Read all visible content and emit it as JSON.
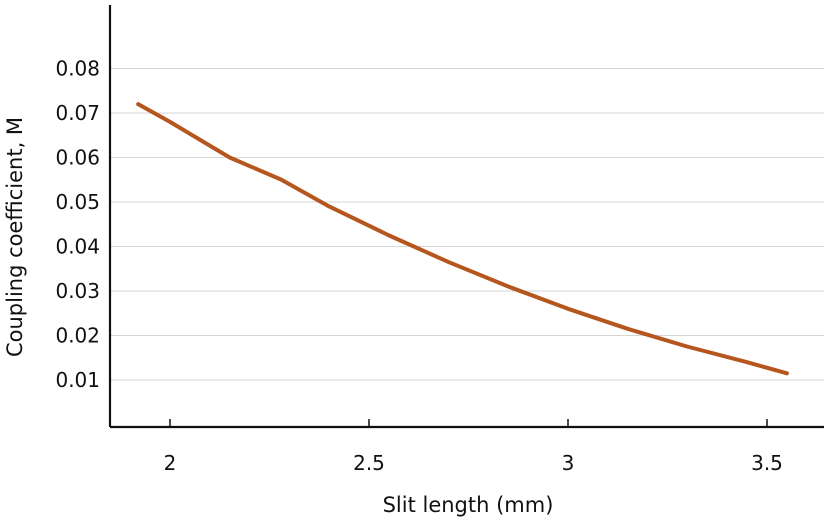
{
  "chart_data": {
    "type": "line",
    "title": "",
    "xlabel": "Slit length (mm)",
    "ylabel": "Coupling coefficient, M",
    "xlim": [
      1.85,
      3.62
    ],
    "ylim": [
      0.0,
      0.085
    ],
    "xticks": [
      2,
      2.5,
      3,
      3.5
    ],
    "xtick_labels": [
      "2",
      "2.5",
      "3",
      "3.5"
    ],
    "yticks": [
      0.01,
      0.02,
      0.03,
      0.04,
      0.05,
      0.06,
      0.07,
      0.08
    ],
    "ytick_labels": [
      "0.01",
      "0.02",
      "0.03",
      "0.04",
      "0.05",
      "0.06",
      "0.07",
      "0.08"
    ],
    "grid": "horizontal",
    "legend": "none",
    "series": [
      {
        "color": "#b5561f",
        "x": [
          1.92,
          2.0,
          2.15,
          2.28,
          2.4,
          2.55,
          2.7,
          2.85,
          3.0,
          3.15,
          3.3,
          3.45,
          3.55
        ],
        "y": [
          0.072,
          0.068,
          0.06,
          0.055,
          0.049,
          0.0425,
          0.0365,
          0.031,
          0.026,
          0.0215,
          0.0175,
          0.014,
          0.0115
        ]
      }
    ]
  }
}
